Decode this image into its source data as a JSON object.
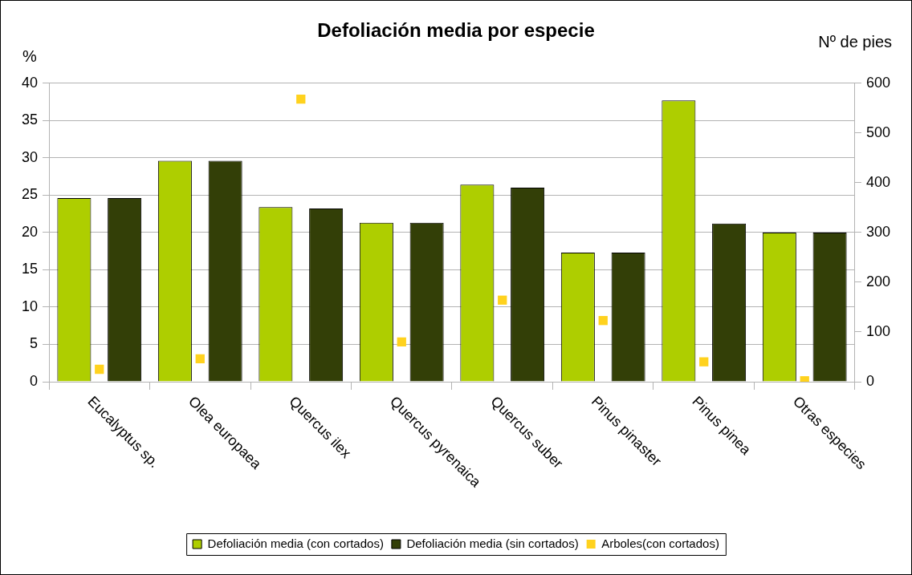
{
  "chart_data": {
    "type": "bar",
    "title": "Defoliación media por especie",
    "ylabel": "%",
    "y2label": "Nº de pies",
    "categories": [
      "Eucalyptus sp.",
      "Olea europaea",
      "Quercus ilex",
      "Quercus pyrenaica",
      "Quercus suber",
      "Pinus pinaster",
      "Pinus pinea",
      "Otras especies"
    ],
    "series": [
      {
        "name": "Defoliación media (con cortados)",
        "color": "#aece00",
        "values": [
          24.6,
          29.6,
          23.4,
          21.3,
          26.4,
          17.3,
          37.7,
          20.0
        ]
      },
      {
        "name": "Defoliación media (sin cortados)",
        "color": "#333f07",
        "values": [
          24.6,
          29.6,
          23.2,
          21.3,
          26.0,
          17.3,
          21.2,
          20.0
        ]
      },
      {
        "name": "Arboles(con cortados)",
        "type": "scatter",
        "axis": "y2",
        "color": "#ffd21e",
        "values": [
          25,
          46,
          568,
          80,
          164,
          123,
          40,
          2
        ]
      }
    ],
    "ylim": [
      0,
      40
    ],
    "yticks": [
      0,
      5,
      10,
      15,
      20,
      25,
      30,
      35,
      40
    ],
    "y2lim": [
      0,
      600
    ],
    "y2ticks": [
      0,
      100,
      200,
      300,
      400,
      500,
      600
    ],
    "grid": "y",
    "legend": "bottom",
    "marker": "square"
  }
}
